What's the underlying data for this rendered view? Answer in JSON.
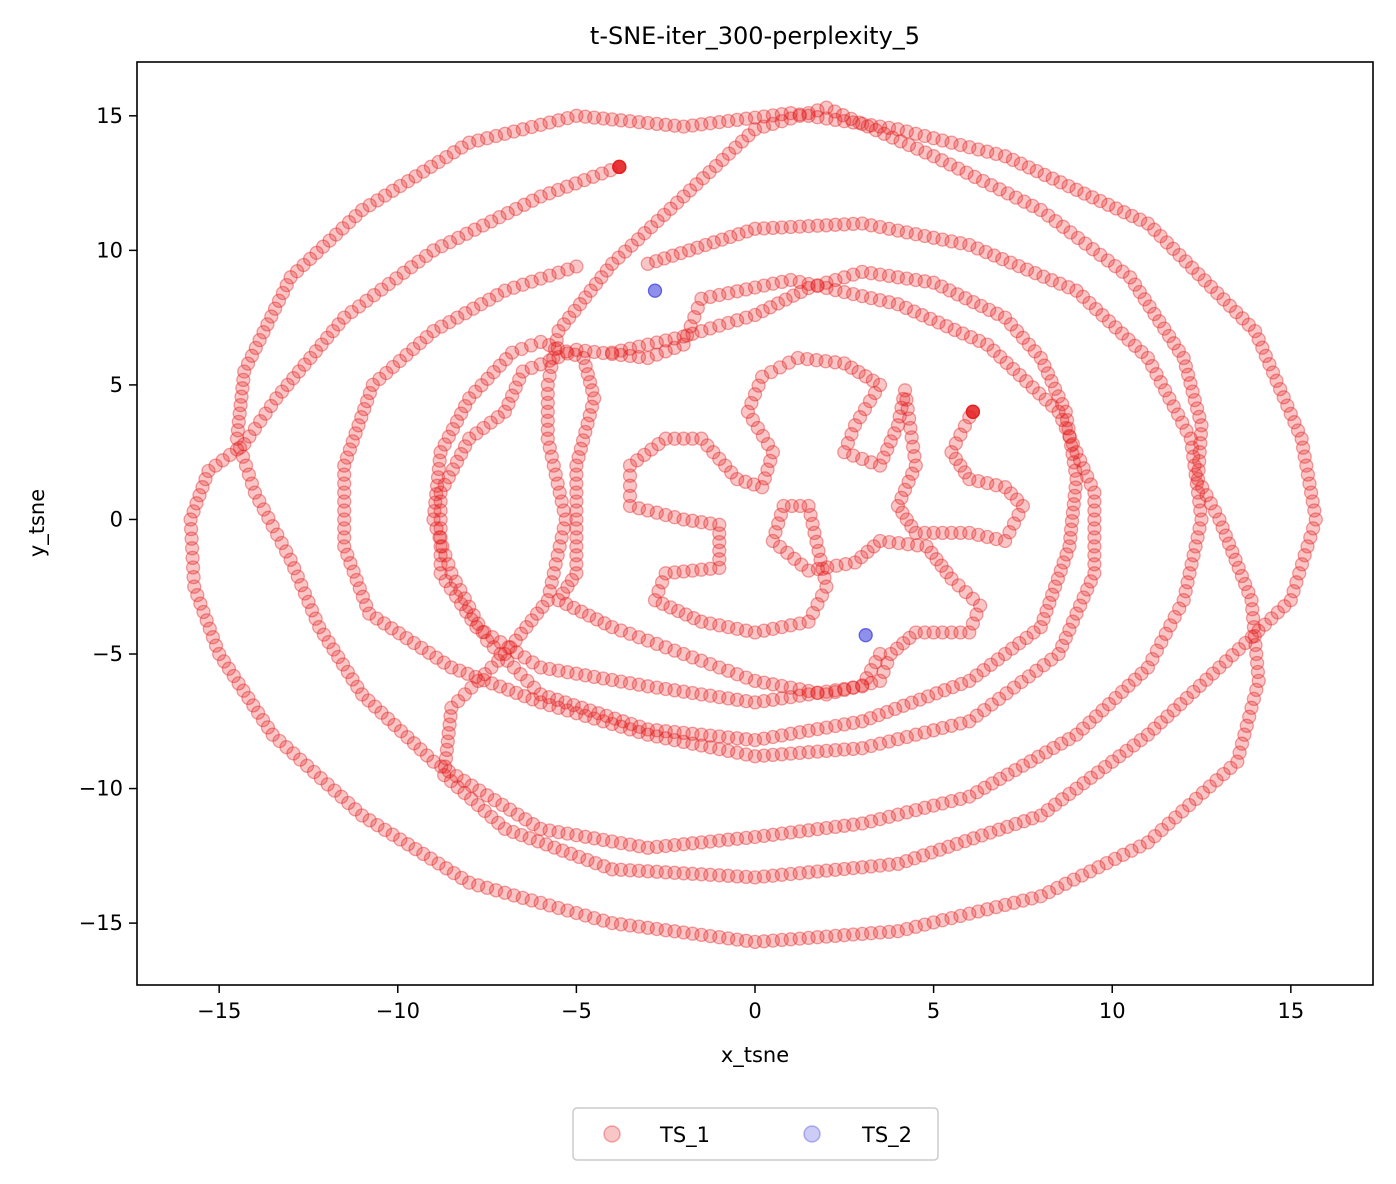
{
  "chart_data": {
    "type": "scatter",
    "title": "t-SNE-iter_300-perplexity_5",
    "xlabel": "x_tsne",
    "ylabel": "y_tsne",
    "xlim": [
      -17.3,
      17.3
    ],
    "ylim": [
      -17.3,
      17.0
    ],
    "xticks": [
      -15,
      -10,
      -5,
      0,
      5,
      10,
      15
    ],
    "yticks": [
      -15,
      -10,
      -5,
      0,
      5,
      10,
      15
    ],
    "xtick_labels": [
      "−15",
      "−10",
      "−5",
      "0",
      "5",
      "10",
      "15"
    ],
    "ytick_labels": [
      "−15",
      "−10",
      "−5",
      "0",
      "5",
      "10",
      "15"
    ],
    "grid": false,
    "legend_position": "bottom-center",
    "marker_alpha": 0.25,
    "series": [
      {
        "name": "TS_1",
        "color": "#e41a1c",
        "segments": [
          [
            [
              -3.8,
              13.1
            ],
            [
              -6.0,
              12.0
            ],
            [
              -9.0,
              10.0
            ],
            [
              -11.5,
              7.5
            ],
            [
              -13.4,
              4.5
            ],
            [
              -14.3,
              2.8
            ],
            [
              -15.3,
              1.8
            ],
            [
              -15.8,
              0.0
            ],
            [
              -15.7,
              -2.5
            ],
            [
              -15.0,
              -5.0
            ],
            [
              -13.5,
              -8.0
            ],
            [
              -11.0,
              -11.0
            ],
            [
              -8.0,
              -13.5
            ],
            [
              -4.0,
              -15.0
            ],
            [
              0.0,
              -15.7
            ],
            [
              4.0,
              -15.3
            ],
            [
              8.0,
              -14.0
            ],
            [
              11.0,
              -12.0
            ],
            [
              13.5,
              -9.0
            ],
            [
              14.1,
              -6.0
            ],
            [
              13.9,
              -3.0
            ],
            [
              13.0,
              0.0
            ],
            [
              12.4,
              1.5
            ],
            [
              12.5,
              3.5
            ],
            [
              12.0,
              6.0
            ],
            [
              10.5,
              9.0
            ],
            [
              8.0,
              11.5
            ],
            [
              5.0,
              13.5
            ],
            [
              2.0,
              15.3
            ],
            [
              0.0,
              14.5
            ],
            [
              -2.0,
              12.0
            ],
            [
              -4.0,
              9.5
            ],
            [
              -5.5,
              7.0
            ],
            [
              -5.8,
              5.0
            ],
            [
              -5.8,
              3.0
            ],
            [
              -5.3,
              0.0
            ],
            [
              -5.8,
              -3.0
            ],
            [
              -7.0,
              -5.0
            ],
            [
              -8.5,
              -7.0
            ],
            [
              -8.7,
              -9.5
            ],
            [
              -7.0,
              -11.5
            ],
            [
              -4.0,
              -13.0
            ],
            [
              0.0,
              -13.3
            ],
            [
              4.0,
              -12.8
            ],
            [
              8.0,
              -11.0
            ],
            [
              11.0,
              -8.0
            ],
            [
              13.0,
              -5.5
            ],
            [
              15.0,
              -3.0
            ],
            [
              15.7,
              0.0
            ],
            [
              15.3,
              3.0
            ],
            [
              14.0,
              7.0
            ],
            [
              11.0,
              11.0
            ],
            [
              7.0,
              13.5
            ],
            [
              4.0,
              14.5
            ],
            [
              1.0,
              15.1
            ],
            [
              -2.0,
              14.6
            ],
            [
              -5.0,
              15.0
            ],
            [
              -8.0,
              14.0
            ],
            [
              -11.0,
              11.5
            ],
            [
              -13.0,
              9.0
            ],
            [
              -14.3,
              5.5
            ],
            [
              -14.5,
              3.0
            ],
            [
              -14.0,
              1.0
            ],
            [
              -13.0,
              -1.5
            ],
            [
              -12.2,
              -4.0
            ],
            [
              -11.0,
              -6.5
            ],
            [
              -9.0,
              -9.0
            ],
            [
              -6.0,
              -11.5
            ],
            [
              -3.0,
              -12.2
            ],
            [
              0.0,
              -11.8
            ],
            [
              3.0,
              -11.3
            ],
            [
              6.0,
              -10.3
            ],
            [
              9.0,
              -8.0
            ],
            [
              11.0,
              -5.5
            ],
            [
              12.0,
              -3.0
            ],
            [
              12.5,
              0.0
            ],
            [
              12.2,
              3.0
            ],
            [
              11.0,
              6.0
            ],
            [
              9.0,
              8.5
            ],
            [
              6.0,
              10.2
            ],
            [
              3.0,
              11.0
            ],
            [
              0.0,
              10.8
            ],
            [
              -3.0,
              9.5
            ]
          ],
          [
            [
              -5.0,
              9.4
            ],
            [
              -7.0,
              8.5
            ],
            [
              -9.0,
              7.0
            ],
            [
              -10.7,
              5.0
            ],
            [
              -11.5,
              2.0
            ],
            [
              -11.5,
              -1.0
            ],
            [
              -10.8,
              -3.5
            ],
            [
              -8.5,
              -5.5
            ],
            [
              -6.0,
              -6.8
            ],
            [
              -3.0,
              -8.0
            ],
            [
              0.0,
              -8.8
            ],
            [
              3.0,
              -8.5
            ],
            [
              6.0,
              -7.5
            ],
            [
              8.5,
              -5.0
            ],
            [
              9.5,
              -2.0
            ],
            [
              9.5,
              1.0
            ],
            [
              8.5,
              4.0
            ],
            [
              6.5,
              6.5
            ],
            [
              4.0,
              8.0
            ],
            [
              1.0,
              8.9
            ],
            [
              -1.5,
              8.2
            ],
            [
              -2.0,
              6.5
            ],
            [
              -3.0,
              6.0
            ],
            [
              -5.0,
              6.3
            ],
            [
              -6.5,
              5.5
            ],
            [
              -7.0,
              4.0
            ],
            [
              -8.0,
              3.0
            ],
            [
              -8.8,
              1.0
            ],
            [
              -8.8,
              -2.0
            ],
            [
              -7.8,
              -4.0
            ],
            [
              -6.0,
              -5.5
            ],
            [
              -3.0,
              -6.2
            ],
            [
              0.0,
              -6.8
            ],
            [
              3.0,
              -6.2
            ],
            [
              3.5,
              -5.0
            ]
          ],
          [
            [
              -4.0,
              6.2
            ],
            [
              -2.0,
              6.8
            ],
            [
              0.0,
              7.6
            ],
            [
              1.5,
              8.6
            ],
            [
              3.0,
              9.2
            ],
            [
              5.0,
              8.8
            ],
            [
              7.0,
              7.5
            ],
            [
              8.0,
              6.0
            ],
            [
              8.7,
              4.0
            ],
            [
              9.0,
              1.5
            ],
            [
              8.8,
              -1.0
            ],
            [
              8.0,
              -4.0
            ],
            [
              6.0,
              -6.0
            ],
            [
              3.0,
              -7.5
            ],
            [
              0.0,
              -8.2
            ],
            [
              -3.0,
              -7.8
            ],
            [
              -6.0,
              -6.5
            ],
            [
              -7.5,
              -4.5
            ],
            [
              -8.5,
              -2.0
            ],
            [
              -9.0,
              0.0
            ],
            [
              -8.8,
              2.5
            ],
            [
              -8.0,
              4.5
            ],
            [
              -6.8,
              6.2
            ],
            [
              -6.0,
              6.6
            ],
            [
              -4.8,
              6.0
            ],
            [
              -4.5,
              4.5
            ],
            [
              -5.0,
              2.0
            ],
            [
              -5.0,
              0.0
            ],
            [
              -5.0,
              -2.0
            ],
            [
              -5.5,
              -3.0
            ],
            [
              -4.0,
              -4.0
            ],
            [
              -2.0,
              -5.0
            ],
            [
              0.0,
              -6.0
            ],
            [
              2.0,
              -6.5
            ],
            [
              3.5,
              -6.0
            ],
            [
              3.8,
              -5.0
            ],
            [
              4.5,
              -4.2
            ],
            [
              6.0,
              -4.2
            ],
            [
              6.3,
              -3.2
            ],
            [
              5.5,
              -2.2
            ],
            [
              4.8,
              -1.0
            ],
            [
              3.5,
              -0.8
            ],
            [
              2.8,
              -1.6
            ],
            [
              1.5,
              -1.9
            ],
            [
              0.5,
              -0.8
            ],
            [
              0.8,
              0.5
            ],
            [
              1.5,
              0.5
            ],
            [
              2.0,
              -2.5
            ],
            [
              1.5,
              -3.8
            ],
            [
              0.0,
              -4.2
            ],
            [
              -1.5,
              -3.8
            ],
            [
              -2.8,
              -3.0
            ],
            [
              -2.5,
              -2.0
            ],
            [
              -1.0,
              -1.8
            ],
            [
              -1.0,
              -0.2
            ],
            [
              -2.0,
              0.0
            ],
            [
              -3.5,
              0.5
            ],
            [
              -3.5,
              2.0
            ],
            [
              -2.5,
              3.0
            ],
            [
              -1.5,
              3.0
            ],
            [
              -0.5,
              1.5
            ],
            [
              0.2,
              1.2
            ],
            [
              0.5,
              2.5
            ],
            [
              -0.2,
              4.0
            ],
            [
              0.2,
              5.3
            ],
            [
              1.2,
              6.0
            ],
            [
              2.5,
              5.8
            ],
            [
              3.5,
              5.0
            ],
            [
              2.8,
              3.5
            ],
            [
              2.5,
              2.5
            ],
            [
              3.5,
              2.0
            ],
            [
              4.0,
              3.5
            ],
            [
              4.2,
              4.8
            ],
            [
              4.5,
              2.0
            ],
            [
              4.0,
              0.5
            ],
            [
              4.5,
              -0.5
            ],
            [
              6.0,
              -0.5
            ],
            [
              7.0,
              -0.8
            ],
            [
              7.5,
              0.5
            ],
            [
              7.0,
              1.2
            ],
            [
              6.0,
              1.5
            ],
            [
              5.5,
              2.5
            ],
            [
              6.0,
              3.8
            ]
          ]
        ],
        "highlights": [
          [
            -3.8,
            13.1
          ],
          [
            6.1,
            4.0
          ]
        ]
      },
      {
        "name": "TS_2",
        "color": "#3333dd",
        "points": [
          [
            -2.8,
            8.5
          ],
          [
            3.1,
            -4.3
          ]
        ]
      }
    ]
  }
}
